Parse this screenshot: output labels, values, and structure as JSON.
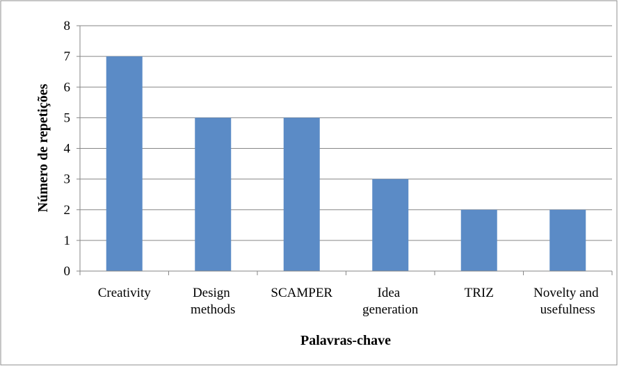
{
  "chart_data": {
    "type": "bar",
    "y_label": "Número de repetições",
    "x_label": "Palavras-chave",
    "categories": [
      "Creativity",
      "Design methods",
      "SCAMPER",
      "Idea generation",
      "TRIZ",
      "Novelty and usefulness"
    ],
    "values": [
      7,
      5,
      5,
      3,
      2,
      2
    ],
    "color": "#5b8bc6",
    "ylim": [
      0,
      8
    ],
    "yticks": [
      0,
      1,
      2,
      3,
      4,
      5,
      6,
      7,
      8
    ],
    "grid": true
  }
}
